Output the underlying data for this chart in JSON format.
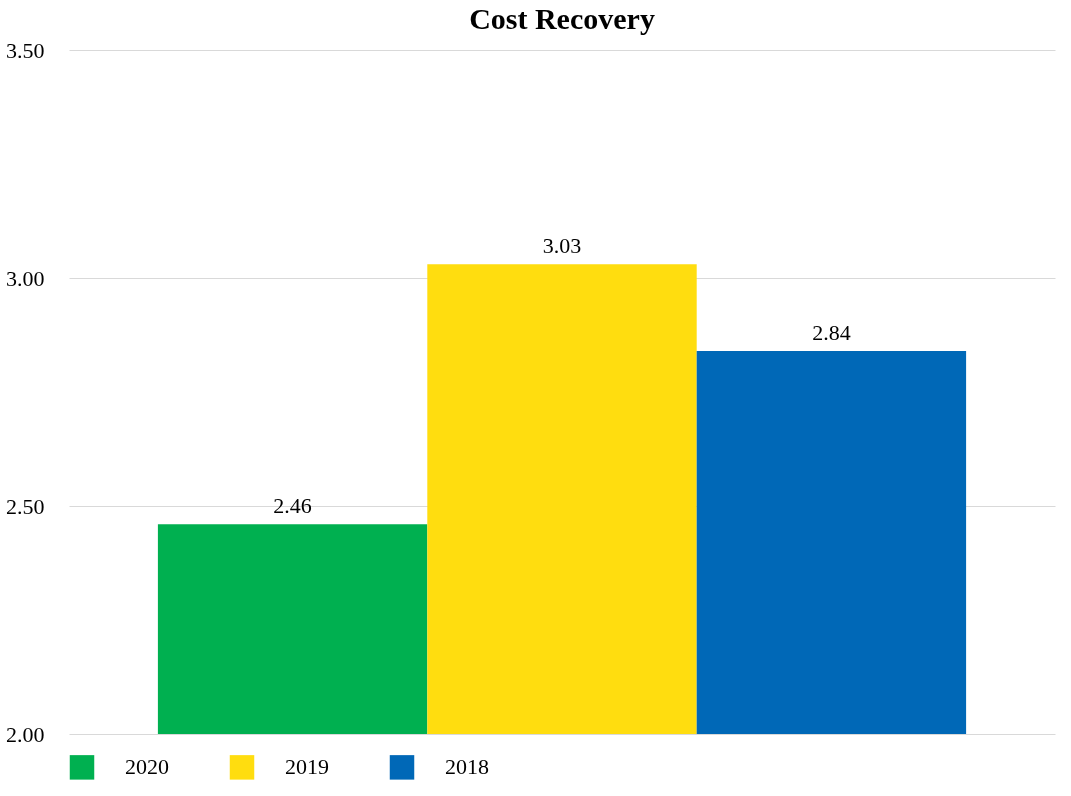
{
  "chart_data": {
    "type": "bar",
    "title": "Cost Recovery",
    "categories": [
      null
    ],
    "series": [
      {
        "name": "2020",
        "color": "#00b050",
        "values": [
          2.46
        ]
      },
      {
        "name": "2019",
        "color": "#ffdd0f",
        "values": [
          3.03
        ]
      },
      {
        "name": "2018",
        "color": "#0068b7",
        "values": [
          2.84
        ]
      }
    ],
    "ylim": [
      2,
      3.5
    ],
    "yticks": [
      {
        "value": 2,
        "label": "2.00"
      },
      {
        "value": 2.5,
        "label": "2.50"
      },
      {
        "value": 3,
        "label": "3.00"
      },
      {
        "value": 3.5,
        "label": "3.50"
      }
    ],
    "grid": "y",
    "legend": "bottom",
    "data_labels": true
  }
}
